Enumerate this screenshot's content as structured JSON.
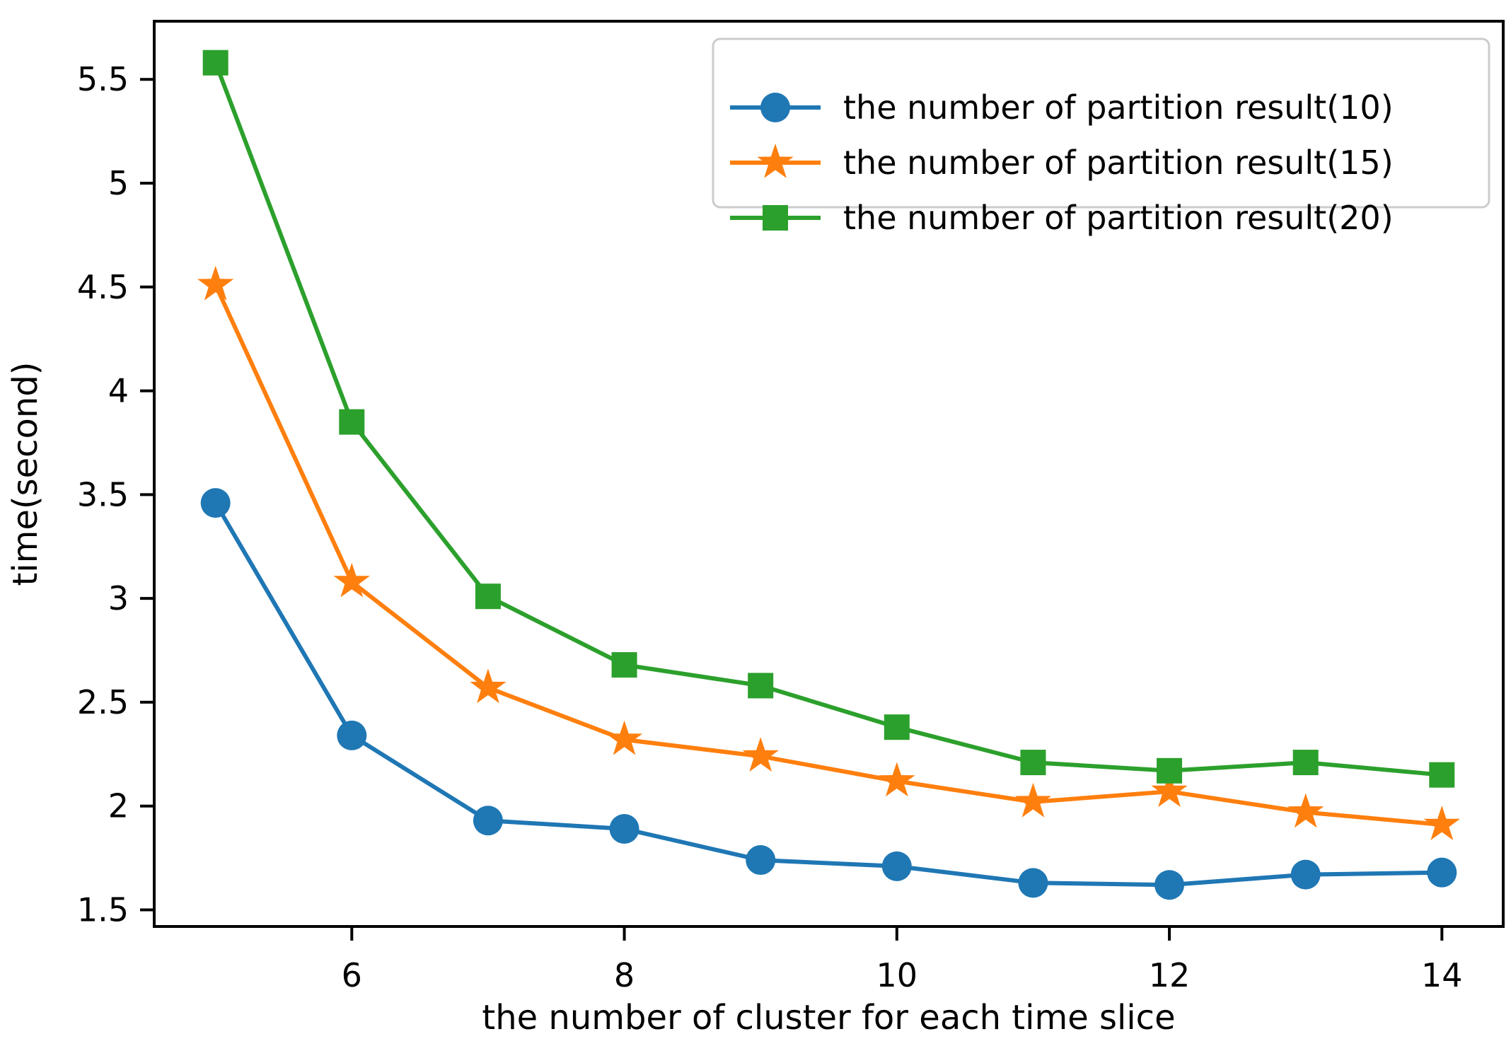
{
  "figure": {
    "background": "#ffffff",
    "axis_color": "#000000",
    "legend_border_color": "#cccccc",
    "legend_background": "#ffffff"
  },
  "chart_data": {
    "type": "line",
    "title": "",
    "xlabel": "the number of cluster for each time slice",
    "ylabel": "time(second)",
    "x": [
      5,
      6,
      7,
      8,
      9,
      10,
      11,
      12,
      13,
      14
    ],
    "series": [
      {
        "name": "the number of partition result(10)",
        "color": "#1f77b4",
        "marker": "circle",
        "values": [
          3.46,
          2.34,
          1.93,
          1.89,
          1.74,
          1.71,
          1.63,
          1.62,
          1.67,
          1.68
        ]
      },
      {
        "name": "the number of partition result(15)",
        "color": "#ff7f0e",
        "marker": "star",
        "values": [
          4.51,
          3.08,
          2.57,
          2.32,
          2.24,
          2.12,
          2.02,
          2.07,
          1.97,
          1.91
        ]
      },
      {
        "name": "the number of partition result(20)",
        "color": "#2ca02c",
        "marker": "square",
        "values": [
          5.58,
          3.85,
          3.01,
          2.68,
          2.58,
          2.38,
          2.21,
          2.17,
          2.21,
          2.15
        ]
      }
    ],
    "xticks": [
      6,
      8,
      10,
      12,
      14
    ],
    "yticks": [
      1.5,
      2.0,
      2.5,
      3.0,
      3.5,
      4.0,
      4.5,
      5.0,
      5.5
    ],
    "xlim": [
      4.55,
      14.45
    ],
    "ylim": [
      1.42,
      5.78
    ],
    "grid": false,
    "legend_position": "upper right"
  }
}
